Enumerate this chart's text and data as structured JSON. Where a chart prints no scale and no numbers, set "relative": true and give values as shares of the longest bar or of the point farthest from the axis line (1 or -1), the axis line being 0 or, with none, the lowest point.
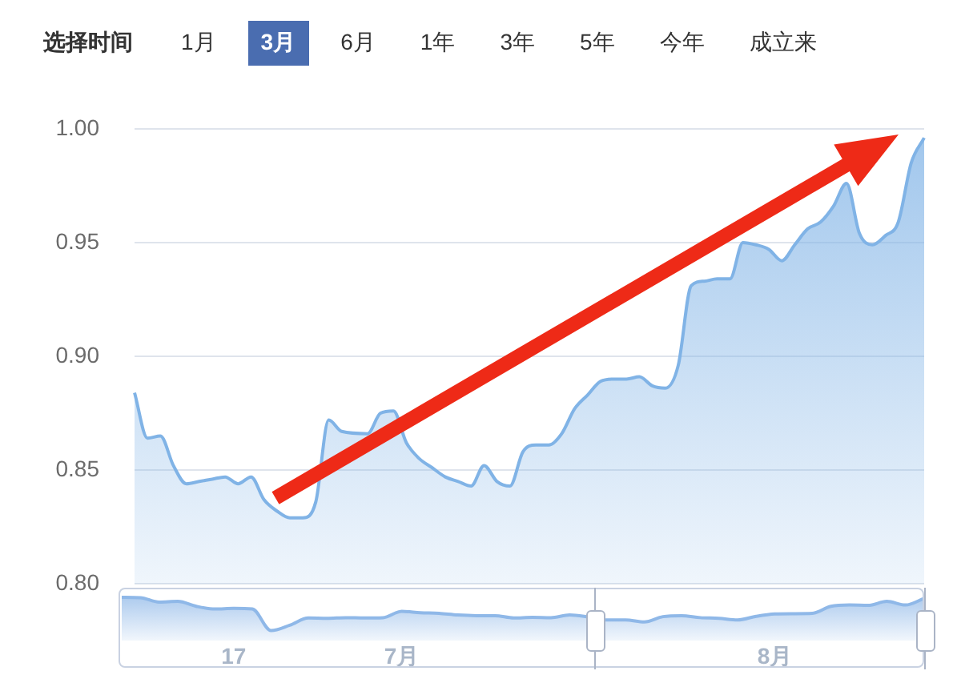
{
  "chart_data": [
    {
      "type": "other",
      "title": "选择时间",
      "annotations": [
        "1月",
        "3月",
        "6月",
        "1年",
        "3年",
        "5年",
        "今年",
        "成立来"
      ]
    },
    {
      "type": "area",
      "categories": [
        null,
        null,
        null,
        null,
        null,
        null,
        null,
        null,
        null,
        null,
        null,
        null,
        null,
        null,
        null,
        null,
        null,
        null,
        null,
        null,
        null,
        null,
        null,
        null,
        null,
        null,
        null,
        null,
        null,
        null,
        null,
        null,
        null,
        null,
        null,
        null,
        null,
        null,
        null,
        null,
        null,
        null,
        null,
        null,
        null,
        null,
        null,
        null,
        null,
        null,
        null,
        null,
        null,
        null,
        null,
        null,
        null,
        null,
        null,
        null,
        null,
        null
      ],
      "series": [
        {
          "color": "#80b3e6",
          "values": [
            0.884,
            0.864,
            0.865,
            0.852,
            0.844,
            0.845,
            0.846,
            0.847,
            0.844,
            0.847,
            0.837,
            0.832,
            0.829,
            0.829,
            0.836,
            0.872,
            0.867,
            null,
            0.866,
            0.875,
            0.876,
            0.862,
            0.855,
            0.851,
            0.847,
            0.845,
            0.843,
            0.852,
            0.845,
            0.843,
            0.858,
            0.861,
            0.861,
            0.866,
            0.877,
            0.883,
            0.889,
            0.89,
            0.89,
            0.891,
            0.887,
            0.886,
            0.896,
            0.931,
            0.933,
            0.934,
            0.934,
            0.95,
            0.949,
            0.947,
            0.942,
            0.949,
            0.956,
            0.959,
            0.966,
            0.976,
            0.954,
            0.949,
            0.953,
            0.959,
            0.985,
            0.996
          ]
        }
      ],
      "ylim": [
        0.8,
        1.0
      ],
      "yticks": [
        {
          "value": 0.8,
          "label": "0.80"
        },
        {
          "value": 0.85,
          "label": "0.85"
        },
        {
          "value": 0.9,
          "label": "0.90"
        },
        {
          "value": 0.95,
          "label": "0.95"
        },
        {
          "value": 1.0,
          "label": "1.00"
        }
      ],
      "grid": "y",
      "tick_labels": "y"
    },
    {
      "type": "area",
      "relative": true,
      "categories": [
        null,
        null,
        null,
        null,
        null,
        null,
        "17",
        null,
        null,
        null,
        null,
        null,
        null,
        null,
        null,
        "7月",
        null,
        null,
        null,
        null,
        null,
        null,
        null,
        null,
        null,
        null,
        null,
        null,
        null,
        null,
        null,
        null,
        null,
        null,
        null,
        "8月",
        null,
        null,
        null,
        null,
        null,
        null,
        null,
        null
      ],
      "values": [
        1.0,
        0.99,
        0.86,
        0.88,
        0.73,
        0.65,
        0.67,
        0.65,
        0,
        0.16,
        0.38,
        0.37,
        0.39,
        0.38,
        0.39,
        0.58,
        0.54,
        0.52,
        0.47,
        0.45,
        0.45,
        0.38,
        0.4,
        0.39,
        0.47,
        0.41,
        0.32,
        0.32,
        0.26,
        0.42,
        0.45,
        0.39,
        0.37,
        0.32,
        0.43,
        0.5,
        0.51,
        0.52,
        0.73,
        0.77,
        0.76,
        0.88,
        0.77,
        0.97
      ],
      "color": "#8fb8e8"
    }
  ]
}
